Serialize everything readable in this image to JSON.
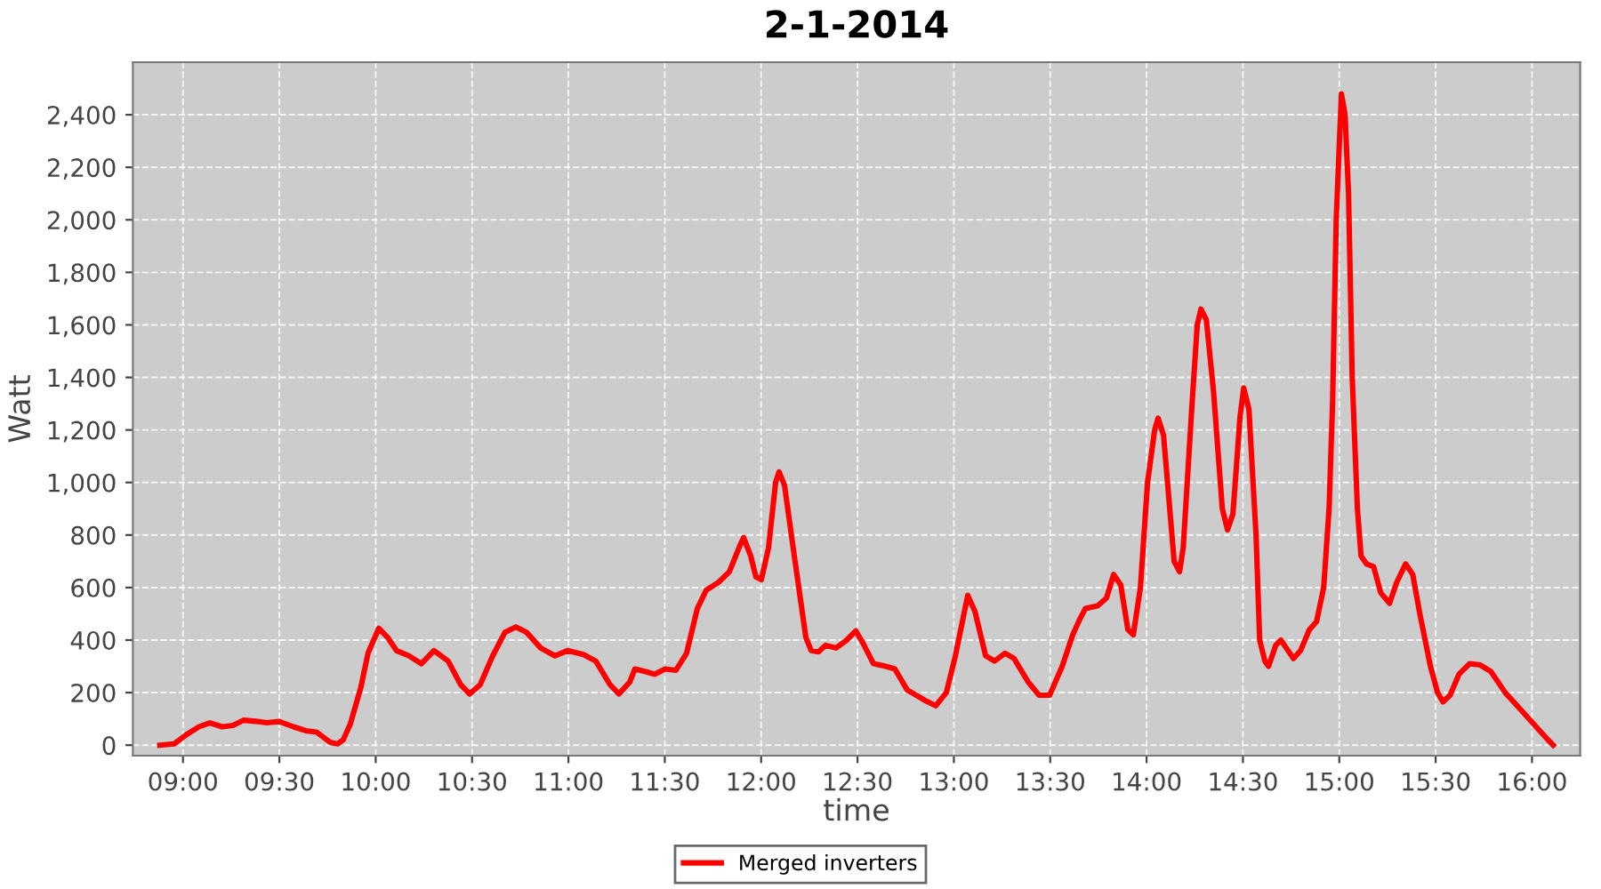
{
  "chart_data": {
    "type": "line",
    "title": "2-1-2014",
    "xlabel": "time",
    "ylabel": "Watt",
    "xlim": [
      8.74,
      16.25
    ],
    "ylim": [
      -40,
      2600
    ],
    "xticks": [
      {
        "value": 9,
        "label": "09:00"
      },
      {
        "value": 9.5,
        "label": "09:30"
      },
      {
        "value": 10,
        "label": "10:00"
      },
      {
        "value": 10.5,
        "label": "10:30"
      },
      {
        "value": 11,
        "label": "11:00"
      },
      {
        "value": 11.5,
        "label": "11:30"
      },
      {
        "value": 12,
        "label": "12:00"
      },
      {
        "value": 12.5,
        "label": "12:30"
      },
      {
        "value": 13,
        "label": "13:00"
      },
      {
        "value": 13.5,
        "label": "13:30"
      },
      {
        "value": 14,
        "label": "14:00"
      },
      {
        "value": 14.5,
        "label": "14:30"
      },
      {
        "value": 15,
        "label": "15:00"
      },
      {
        "value": 15.5,
        "label": "15:30"
      },
      {
        "value": 16,
        "label": "16:00"
      }
    ],
    "yticks": [
      0,
      {
        "value": 200,
        "label": "200"
      },
      400,
      600,
      800,
      {
        "value": 1000,
        "label": "1,000"
      },
      {
        "value": 1200,
        "label": "1,200"
      },
      {
        "value": 1400,
        "label": "1,400"
      },
      {
        "value": 1600,
        "label": "1,600"
      },
      {
        "value": 1800,
        "label": "1,800"
      },
      {
        "value": 2000,
        "label": "2,000"
      },
      {
        "value": 2200,
        "label": "2,200"
      },
      {
        "value": 2400,
        "label": "2,400"
      }
    ],
    "grid": true,
    "legend": "bottom",
    "line_style": "solid",
    "series": [
      {
        "name": "Merged inverters",
        "color": "#ff0000",
        "x": [
          8.88,
          8.954,
          9.018,
          9.083,
          9.139,
          9.203,
          9.259,
          9.314,
          9.388,
          9.434,
          9.499,
          9.573,
          9.637,
          9.693,
          9.729,
          9.766,
          9.803,
          9.831,
          9.868,
          9.923,
          9.96,
          10.016,
          10.062,
          10.108,
          10.173,
          10.237,
          10.302,
          10.376,
          10.441,
          10.487,
          10.542,
          10.607,
          10.671,
          10.727,
          10.782,
          10.856,
          10.93,
          10.995,
          11.078,
          11.142,
          11.216,
          11.262,
          11.318,
          11.345,
          11.401,
          11.447,
          11.502,
          11.558,
          11.613,
          11.669,
          11.715,
          11.779,
          11.835,
          11.89,
          11.909,
          11.946,
          11.973,
          12.001,
          12.038,
          12.075,
          12.093,
          12.121,
          12.176,
          12.232,
          12.26,
          12.297,
          12.334,
          12.389,
          12.444,
          12.491,
          12.527,
          12.583,
          12.647,
          12.694,
          12.758,
          12.851,
          12.906,
          12.961,
          13.008,
          13.072,
          13.109,
          13.165,
          13.211,
          13.266,
          13.312,
          13.386,
          13.442,
          13.497,
          13.562,
          13.617,
          13.654,
          13.682,
          13.746,
          13.792,
          13.829,
          13.866,
          13.903,
          13.931,
          13.968,
          14.005,
          14.042,
          14.06,
          14.088,
          14.143,
          14.171,
          14.19,
          14.236,
          14.263,
          14.282,
          14.31,
          14.347,
          14.393,
          14.42,
          14.448,
          14.485,
          14.504,
          14.531,
          14.568,
          14.587,
          14.614,
          14.633,
          14.67,
          14.697,
          14.725,
          14.762,
          14.799,
          14.845,
          14.882,
          14.919,
          14.947,
          14.965,
          14.984,
          15.011,
          15.03,
          15.048,
          15.067,
          15.094,
          15.113,
          15.141,
          15.178,
          15.215,
          15.261,
          15.298,
          15.344,
          15.381,
          15.418,
          15.473,
          15.51,
          15.538,
          15.575,
          15.621,
          15.676,
          15.732,
          15.787,
          15.861,
          15.935,
          16.009,
          16.083,
          16.11
        ],
        "values": [
          0,
          5,
          40,
          70,
          85,
          70,
          75,
          95,
          90,
          85,
          90,
          70,
          55,
          50,
          30,
          10,
          5,
          20,
          80,
          220,
          350,
          445,
          410,
          360,
          340,
          310,
          360,
          320,
          230,
          195,
          230,
          340,
          430,
          450,
          430,
          370,
          340,
          360,
          345,
          320,
          230,
          195,
          240,
          290,
          280,
          270,
          290,
          285,
          350,
          520,
          590,
          620,
          660,
          760,
          790,
          720,
          640,
          630,
          750,
          1000,
          1040,
          990,
          700,
          410,
          360,
          355,
          380,
          370,
          400,
          435,
          390,
          310,
          300,
          290,
          210,
          170,
          150,
          200,
          340,
          570,
          510,
          340,
          320,
          350,
          330,
          240,
          190,
          190,
          300,
          420,
          480,
          520,
          530,
          560,
          650,
          610,
          440,
          420,
          600,
          1000,
          1200,
          1245,
          1180,
          700,
          660,
          750,
          1300,
          1600,
          1660,
          1620,
          1350,
          900,
          820,
          880,
          1250,
          1360,
          1280,
          800,
          400,
          320,
          300,
          380,
          400,
          370,
          330,
          360,
          440,
          470,
          600,
          900,
          1300,
          2000,
          2480,
          2400,
          2100,
          1400,
          900,
          720,
          690,
          680,
          580,
          540,
          620,
          690,
          650,
          500,
          300,
          200,
          165,
          190,
          270,
          310,
          305,
          280,
          200,
          140,
          80,
          20,
          0
        ]
      }
    ]
  }
}
